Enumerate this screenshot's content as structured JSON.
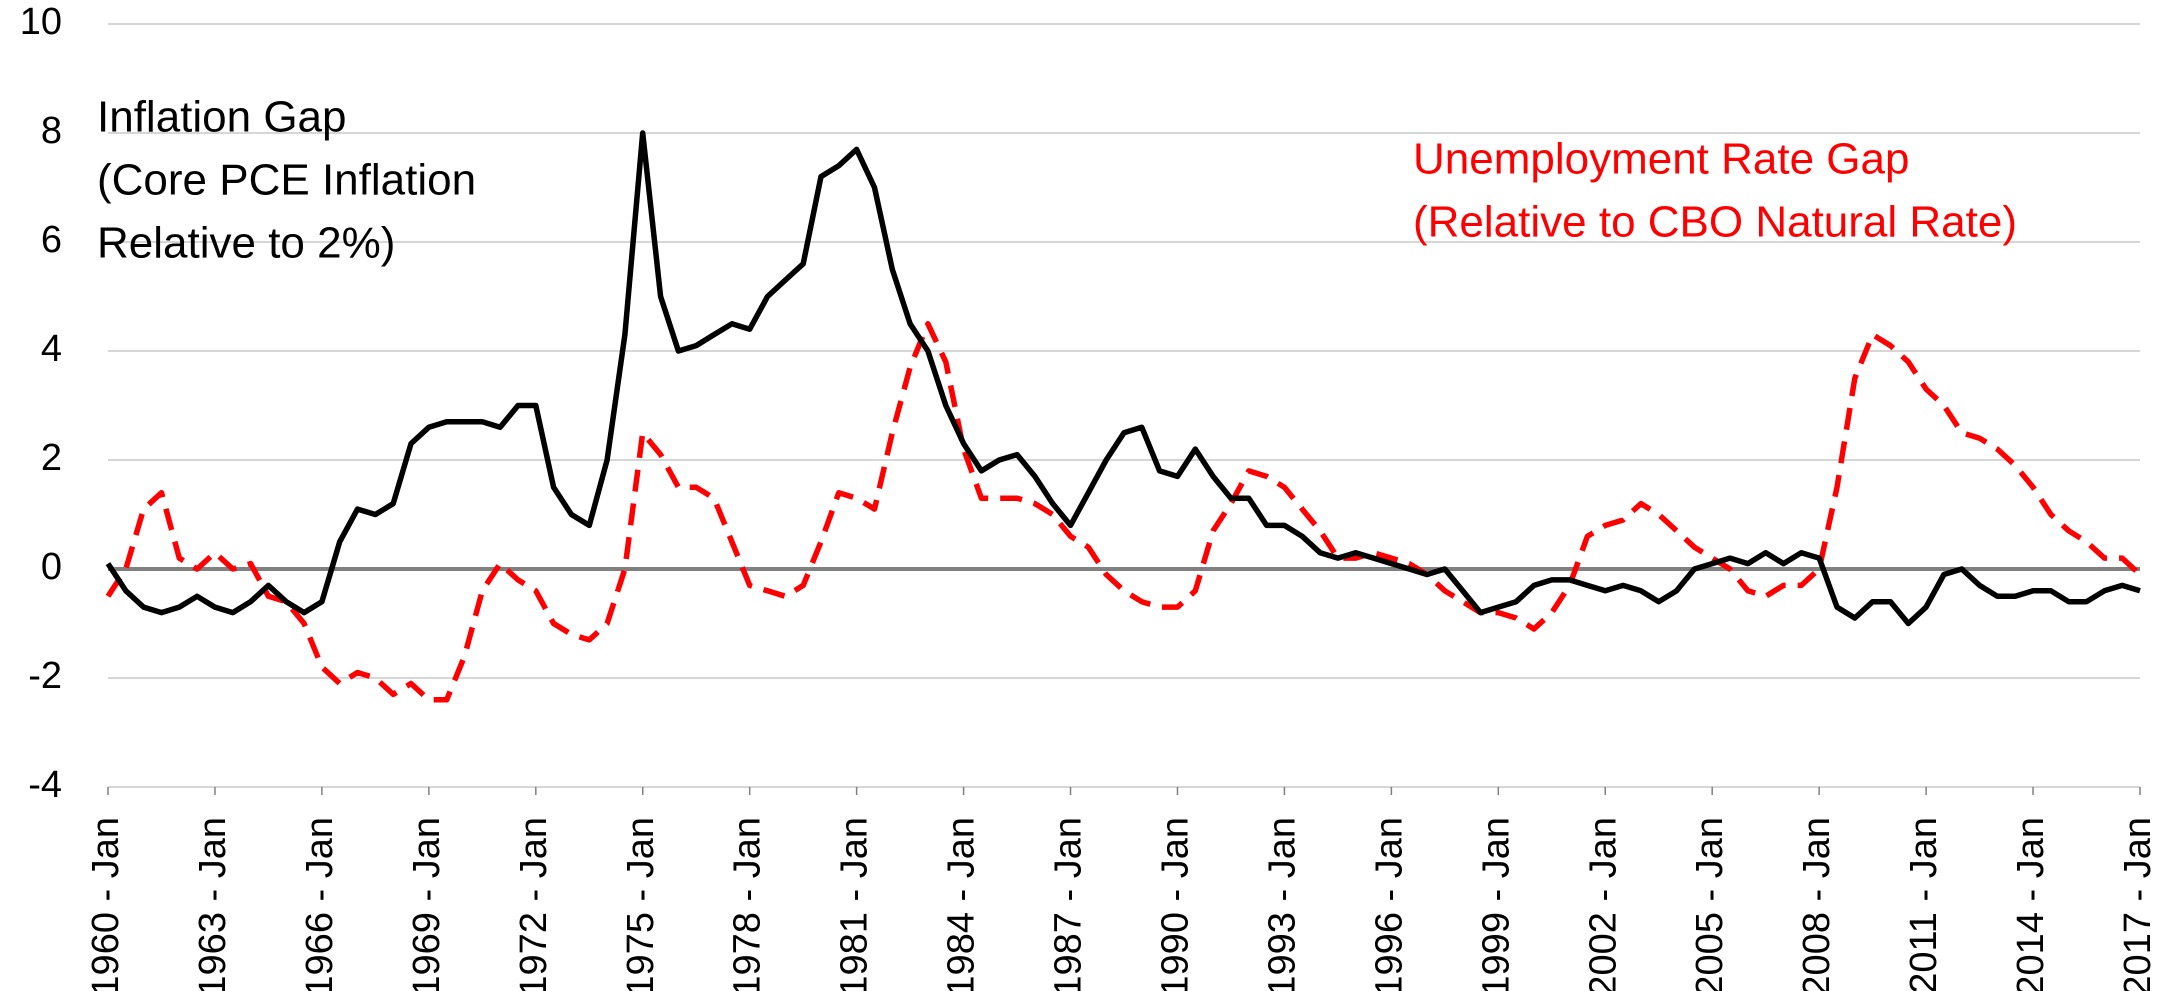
{
  "chart_data": {
    "type": "line",
    "x": [
      1960,
      1960.5,
      1961,
      1961.5,
      1962,
      1962.5,
      1963,
      1963.5,
      1964,
      1964.5,
      1965,
      1965.5,
      1966,
      1966.5,
      1967,
      1967.5,
      1968,
      1968.5,
      1969,
      1969.5,
      1970,
      1970.5,
      1971,
      1971.5,
      1972,
      1972.5,
      1973,
      1973.5,
      1974,
      1974.5,
      1975,
      1975.5,
      1976,
      1976.5,
      1977,
      1977.5,
      1978,
      1978.5,
      1979,
      1979.5,
      1980,
      1980.5,
      1981,
      1981.5,
      1982,
      1982.5,
      1983,
      1983.5,
      1984,
      1984.5,
      1985,
      1985.5,
      1986,
      1986.5,
      1987,
      1987.5,
      1988,
      1988.5,
      1989,
      1989.5,
      1990,
      1990.5,
      1991,
      1991.5,
      1992,
      1992.5,
      1993,
      1993.5,
      1994,
      1994.5,
      1995,
      1995.5,
      1996,
      1996.5,
      1997,
      1997.5,
      1998,
      1998.5,
      1999,
      1999.5,
      2000,
      2000.5,
      2001,
      2001.5,
      2002,
      2002.5,
      2003,
      2003.5,
      2004,
      2004.5,
      2005,
      2005.5,
      2006,
      2006.5,
      2007,
      2007.5,
      2008,
      2008.5,
      2009,
      2009.5,
      2010,
      2010.5,
      2011,
      2011.5,
      2012,
      2012.5,
      2013,
      2013.5,
      2014,
      2014.5,
      2015,
      2015.5,
      2016,
      2016.5,
      2017
    ],
    "series": [
      {
        "label": [
          "Inflation Gap",
          "(Core PCE Inflation",
          "Relative to 2%)"
        ],
        "color": "#000000",
        "dashed": false,
        "values": [
          0.1,
          -0.4,
          -0.7,
          -0.8,
          -0.7,
          -0.5,
          -0.7,
          -0.8,
          -0.6,
          -0.3,
          -0.6,
          -0.8,
          -0.6,
          0.5,
          1.1,
          1.0,
          1.2,
          2.3,
          2.6,
          2.7,
          2.7,
          2.7,
          2.6,
          3.0,
          3.0,
          1.5,
          1.0,
          0.8,
          2.0,
          4.3,
          8.0,
          5.0,
          4.0,
          4.1,
          4.3,
          4.5,
          4.4,
          5.0,
          5.3,
          5.6,
          7.2,
          7.4,
          7.7,
          7.0,
          5.5,
          4.5,
          4.0,
          3.0,
          2.3,
          1.8,
          2.0,
          2.1,
          1.7,
          1.2,
          0.8,
          1.4,
          2.0,
          2.5,
          2.6,
          1.8,
          1.7,
          2.2,
          1.7,
          1.3,
          1.3,
          0.8,
          0.8,
          0.6,
          0.3,
          0.2,
          0.3,
          0.2,
          0.1,
          0.0,
          -0.1,
          0.0,
          -0.4,
          -0.8,
          -0.7,
          -0.6,
          -0.3,
          -0.2,
          -0.2,
          -0.3,
          -0.4,
          -0.3,
          -0.4,
          -0.6,
          -0.4,
          0.0,
          0.1,
          0.2,
          0.1,
          0.3,
          0.1,
          0.3,
          0.2,
          -0.7,
          -0.9,
          -0.6,
          -0.6,
          -1.0,
          -0.7,
          -0.1,
          0.0,
          -0.3,
          -0.5,
          -0.5,
          -0.4,
          -0.4,
          -0.6,
          -0.6,
          -0.4,
          -0.3,
          -0.4
        ]
      },
      {
        "label": [
          "Unemployment Rate Gap",
          "(Relative to CBO Natural Rate)"
        ],
        "color": "#ff0000",
        "dashed": true,
        "values": [
          -0.5,
          0.0,
          1.1,
          1.4,
          0.2,
          0.0,
          0.3,
          0.0,
          0.1,
          -0.5,
          -0.6,
          -1.0,
          -1.8,
          -2.1,
          -1.9,
          -2.0,
          -2.3,
          -2.1,
          -2.4,
          -2.4,
          -1.6,
          -0.4,
          0.1,
          -0.2,
          -0.4,
          -1.0,
          -1.2,
          -1.3,
          -1.0,
          0.0,
          2.5,
          2.1,
          1.5,
          1.5,
          1.3,
          0.5,
          -0.3,
          -0.4,
          -0.5,
          -0.3,
          0.5,
          1.4,
          1.3,
          1.1,
          2.5,
          3.7,
          4.5,
          3.8,
          2.2,
          1.3,
          1.3,
          1.3,
          1.2,
          1.0,
          0.6,
          0.4,
          -0.1,
          -0.4,
          -0.6,
          -0.7,
          -0.7,
          -0.4,
          0.7,
          1.2,
          1.8,
          1.7,
          1.5,
          1.1,
          0.7,
          0.2,
          0.2,
          0.3,
          0.2,
          0.1,
          -0.1,
          -0.4,
          -0.6,
          -0.8,
          -0.8,
          -0.9,
          -1.1,
          -0.8,
          -0.3,
          0.6,
          0.8,
          0.9,
          1.2,
          1.0,
          0.7,
          0.4,
          0.2,
          0.0,
          -0.4,
          -0.5,
          -0.3,
          -0.3,
          0.0,
          1.5,
          3.5,
          4.3,
          4.1,
          3.8,
          3.3,
          3.0,
          2.5,
          2.4,
          2.2,
          1.9,
          1.5,
          1.0,
          0.7,
          0.5,
          0.2,
          0.2,
          -0.1
        ]
      }
    ],
    "xlim": [
      1960,
      2017
    ],
    "xticks": [
      {
        "value": 1960,
        "label": "1960 - Jan"
      },
      {
        "value": 1963,
        "label": "1963 - Jan"
      },
      {
        "value": 1966,
        "label": "1966 - Jan"
      },
      {
        "value": 1969,
        "label": "1969 - Jan"
      },
      {
        "value": 1972,
        "label": "1972 - Jan"
      },
      {
        "value": 1975,
        "label": "1975 - Jan"
      },
      {
        "value": 1978,
        "label": "1978 - Jan"
      },
      {
        "value": 1981,
        "label": "1981 - Jan"
      },
      {
        "value": 1984,
        "label": "1984 - Jan"
      },
      {
        "value": 1987,
        "label": "1987 - Jan"
      },
      {
        "value": 1990,
        "label": "1990 - Jan"
      },
      {
        "value": 1993,
        "label": "1993 - Jan"
      },
      {
        "value": 1996,
        "label": "1996 - Jan"
      },
      {
        "value": 1999,
        "label": "1999 - Jan"
      },
      {
        "value": 2002,
        "label": "2002 - Jan"
      },
      {
        "value": 2005,
        "label": "2005 - Jan"
      },
      {
        "value": 2008,
        "label": "2008 - Jan"
      },
      {
        "value": 2011,
        "label": "2011 - Jan"
      },
      {
        "value": 2014,
        "label": "2014 - Jan"
      },
      {
        "value": 2017,
        "label": "2017 - Jan"
      }
    ],
    "ylim": [
      -4,
      10
    ],
    "yticks": [
      -4,
      -2,
      0,
      2,
      4,
      6,
      8,
      10
    ],
    "grid": true
  }
}
